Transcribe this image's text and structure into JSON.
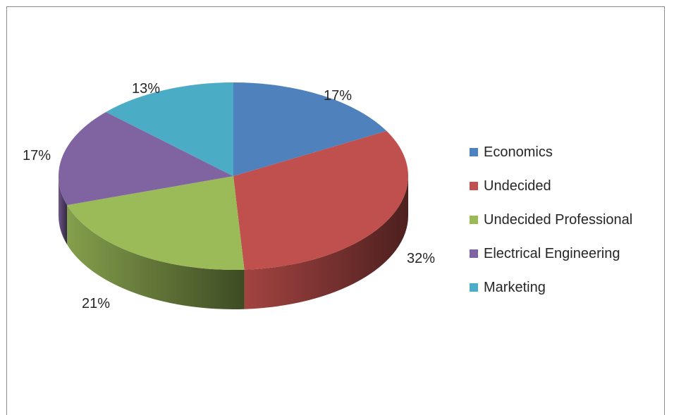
{
  "chart_data": {
    "type": "pie",
    "style": "3d",
    "categories": [
      "Economics",
      "Undecided",
      "Undecided Professional",
      "Electrical Engineering",
      "Marketing"
    ],
    "values": [
      17,
      32,
      21,
      17,
      13
    ],
    "labels": [
      "17%",
      "32%",
      "21%",
      "17%",
      "13%"
    ],
    "colors": [
      "#4f81bd",
      "#c0504d",
      "#9bbb59",
      "#8064a2",
      "#4bacc6"
    ],
    "legend": "right",
    "title": ""
  }
}
